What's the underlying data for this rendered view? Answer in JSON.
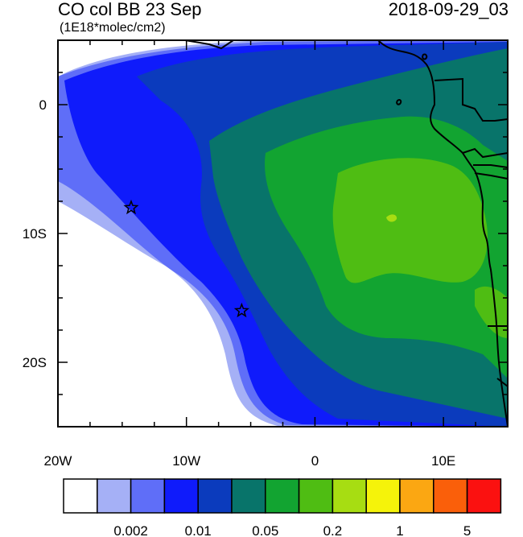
{
  "header": {
    "title": "CO col BB 23 Sep",
    "units": "(1E18*molec/cm2)",
    "valid_time": "2018-09-29_03"
  },
  "axes": {
    "lon_ticks": [
      {
        "value": -20,
        "label": "20W"
      },
      {
        "value": -10,
        "label": "10W"
      },
      {
        "value": 0,
        "label": "0"
      },
      {
        "value": 10,
        "label": "10E"
      }
    ],
    "lat_ticks": [
      {
        "value": 0,
        "label": "0"
      },
      {
        "value": -10,
        "label": "10S"
      },
      {
        "value": -20,
        "label": "20S"
      }
    ],
    "lon_range": [
      -20,
      15
    ],
    "lat_range": [
      -25,
      5
    ]
  },
  "markers": [
    {
      "name": "site-star-north",
      "lon": -14.3,
      "lat": -8.0
    },
    {
      "name": "site-star-south",
      "lon": -5.7,
      "lat": -16.0
    }
  ],
  "colorbar": {
    "colors": [
      "#ffffff",
      "#a5b0f6",
      "#5f6ef8",
      "#0f1bfb",
      "#0b3bbd",
      "#08746a",
      "#12a431",
      "#4fbd13",
      "#a7dd12",
      "#f5f30a",
      "#fba712",
      "#fa5f0a",
      "#fb1110"
    ],
    "labels": [
      {
        "after_box": 2,
        "text": "0.002"
      },
      {
        "after_box": 4,
        "text": "0.01"
      },
      {
        "after_box": 6,
        "text": "0.05"
      },
      {
        "after_box": 8,
        "text": "0.2"
      },
      {
        "after_box": 10,
        "text": "1"
      },
      {
        "after_box": 12,
        "text": "5"
      }
    ]
  },
  "map_colors": {
    "land_outline": "#000000",
    "ocean_background": "#ffffff"
  }
}
